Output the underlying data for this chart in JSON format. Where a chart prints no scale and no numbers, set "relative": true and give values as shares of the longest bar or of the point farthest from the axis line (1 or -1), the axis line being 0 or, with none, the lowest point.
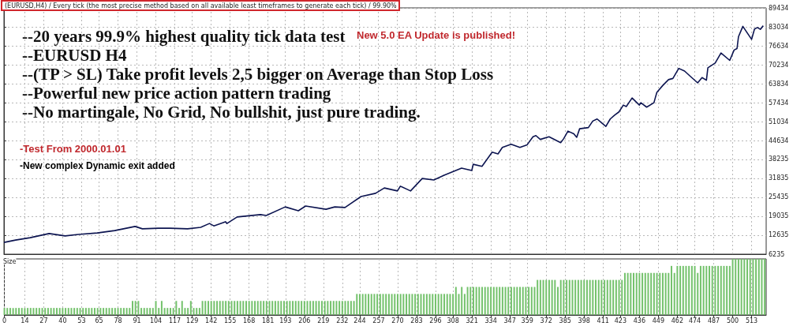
{
  "chart_data": [
    {
      "type": "line",
      "title": "(EURUSD,H4) / Every tick (the most precise method based on all available least timeframes to generate each tick) / 99.90%",
      "annotations": [
        "--20 years 99.9% highest quality tick data test",
        "New 5.0 EA Update is published!",
        "--EURUSD H4",
        "--(TP > SL) Take profit levels 2,5 bigger on Average than Stop Loss",
        "--Powerful new price action pattern trading",
        "--No martingale, No Grid, No bullshit, just pure trading.",
        "-Test From 2000.01.01",
        "-New complex Dynamic exit added"
      ],
      "x": [
        0,
        8,
        18,
        31,
        42,
        51,
        64,
        76,
        90,
        95,
        106,
        114,
        126,
        135,
        141,
        144,
        152,
        153,
        160,
        176,
        180,
        193,
        202,
        207,
        221,
        227,
        234,
        245,
        255,
        261,
        270,
        272,
        279,
        287,
        295,
        302,
        314,
        321,
        322,
        328,
        335,
        339,
        342,
        348,
        354,
        359,
        363,
        365,
        368,
        374,
        382,
        384,
        387,
        391,
        393,
        395,
        401,
        404,
        407,
        413,
        416,
        419,
        422,
        425,
        427,
        431,
        436,
        437,
        441,
        446,
        447,
        448,
        452,
        456,
        459,
        463,
        467,
        471,
        476,
        479,
        482,
        483,
        488,
        492,
        498,
        501,
        503,
        504,
        507,
        510,
        513,
        515,
        517,
        519,
        521
      ],
      "series": [
        {
          "color": "#0c1450",
          "values": [
            10200,
            11000,
            11800,
            13200,
            12400,
            12900,
            13400,
            14200,
            15600,
            14800,
            15000,
            15000,
            14800,
            15300,
            16600,
            15800,
            17200,
            16600,
            18800,
            19600,
            19300,
            22200,
            20900,
            22500,
            21400,
            22200,
            22000,
            25700,
            26800,
            28600,
            27600,
            29200,
            27600,
            31800,
            31300,
            32900,
            35300,
            34500,
            36600,
            35900,
            40700,
            40100,
            42300,
            43400,
            42300,
            43200,
            45900,
            46300,
            45000,
            45900,
            43900,
            45200,
            47800,
            46900,
            45700,
            48600,
            49000,
            51200,
            51900,
            49400,
            51900,
            53200,
            54300,
            56600,
            56100,
            59000,
            56600,
            57400,
            55900,
            57400,
            59200,
            60900,
            63200,
            65200,
            65600,
            69000,
            68100,
            66300,
            64100,
            65900,
            65000,
            69200,
            70800,
            74200,
            71700,
            75200,
            75700,
            79700,
            83200,
            81000,
            78800,
            82300,
            82800,
            82200,
            83400
          ]
        }
      ],
      "xlim": [
        0,
        523
      ],
      "xticks": [
        0,
        14,
        27,
        40,
        53,
        65,
        78,
        91,
        104,
        117,
        129,
        142,
        155,
        168,
        181,
        193,
        206,
        219,
        232,
        244,
        257,
        270,
        283,
        296,
        308,
        321,
        334,
        347,
        359,
        372,
        385,
        398,
        411,
        423,
        436,
        449,
        462,
        474,
        487,
        500,
        513
      ],
      "ylim": [
        6235,
        89434
      ],
      "yticks": [
        6235,
        12635,
        19035,
        25435,
        31835,
        38235,
        44634,
        51034,
        57434,
        63834,
        70234,
        76634,
        83034,
        89434
      ],
      "grid": true,
      "tick_labels": "y"
    },
    {
      "type": "bar",
      "title": "Size",
      "relative": true,
      "color": "#74c26c",
      "grid": "x",
      "tick_labels": "x",
      "xlim": [
        0,
        523
      ],
      "xticks": [
        0,
        14,
        27,
        40,
        53,
        65,
        78,
        91,
        104,
        117,
        129,
        142,
        155,
        168,
        181,
        193,
        206,
        219,
        232,
        244,
        257,
        270,
        283,
        296,
        308,
        321,
        334,
        347,
        359,
        372,
        385,
        398,
        411,
        423,
        436,
        449,
        462,
        474,
        487,
        500,
        513
      ],
      "x": [
        0,
        2,
        4,
        6,
        8,
        10,
        12,
        14,
        16,
        18,
        20,
        22,
        24,
        26,
        28,
        30,
        32,
        34,
        36,
        38,
        40,
        42,
        44,
        46,
        48,
        50,
        52,
        54,
        56,
        58,
        60,
        62,
        64,
        66,
        68,
        70,
        72,
        74,
        76,
        78,
        80,
        82,
        84,
        86,
        88,
        90,
        92,
        94,
        96,
        98,
        100,
        102,
        104,
        106,
        108,
        110,
        112,
        114,
        116,
        118,
        120,
        122,
        124,
        126,
        128,
        130,
        132,
        134,
        136,
        138,
        140,
        142,
        144,
        146,
        148,
        150,
        152,
        154,
        156,
        158,
        160,
        162,
        164,
        166,
        168,
        170,
        172,
        174,
        176,
        178,
        180,
        182,
        184,
        186,
        188,
        190,
        192,
        194,
        196,
        198,
        200,
        202,
        204,
        206,
        208,
        210,
        212,
        214,
        216,
        218,
        220,
        222,
        224,
        226,
        228,
        230,
        232,
        234,
        236,
        238,
        240,
        242,
        244,
        246,
        248,
        250,
        252,
        254,
        256,
        258,
        260,
        262,
        264,
        266,
        268,
        270,
        272,
        274,
        276,
        278,
        280,
        282,
        284,
        286,
        288,
        290,
        292,
        294,
        296,
        298,
        300,
        302,
        304,
        306,
        308,
        310,
        312,
        314,
        316,
        318,
        320,
        322,
        324,
        326,
        328,
        330,
        332,
        334,
        336,
        338,
        340,
        342,
        344,
        346,
        348,
        350,
        352,
        354,
        356,
        358,
        360,
        362,
        364,
        366,
        368,
        370,
        372,
        374,
        376,
        378,
        380,
        382,
        384,
        386,
        388,
        390,
        392,
        394,
        396,
        398,
        400,
        402,
        404,
        406,
        408,
        410,
        412,
        414,
        416,
        418,
        420,
        422,
        424,
        426,
        428,
        430,
        432,
        434,
        436,
        438,
        440,
        442,
        444,
        446,
        448,
        450,
        452,
        454,
        456,
        458,
        460,
        462,
        464,
        466,
        468,
        470,
        472,
        474,
        476,
        478,
        480,
        482,
        484,
        486,
        488,
        490,
        492,
        494,
        496,
        498,
        500,
        502,
        504,
        506,
        508,
        510,
        512,
        514,
        516,
        518,
        520,
        522
      ],
      "values": [
        0.125,
        0.125,
        0.125,
        0.125,
        0.125,
        0.125,
        0.125,
        0.125,
        0.125,
        0.125,
        0.125,
        0.125,
        0.125,
        0.125,
        0.125,
        0.125,
        0.125,
        0.125,
        0.125,
        0.125,
        0.125,
        0.125,
        0.125,
        0.125,
        0.125,
        0.125,
        0.125,
        0.125,
        0.125,
        0.125,
        0.125,
        0.125,
        0.125,
        0.125,
        0.125,
        0.125,
        0.125,
        0.125,
        0.125,
        0.125,
        0.125,
        0.125,
        0.125,
        0.125,
        0.25,
        0.25,
        0.25,
        0.125,
        0.125,
        0.125,
        0.125,
        0.125,
        0.25,
        0.125,
        0.25,
        0.125,
        0.125,
        0.125,
        0.125,
        0.25,
        0.125,
        0.25,
        0.125,
        0.125,
        0.25,
        0.125,
        0.125,
        0.125,
        0.25,
        0.25,
        0.25,
        0.25,
        0.25,
        0.25,
        0.25,
        0.25,
        0.25,
        0.25,
        0.25,
        0.25,
        0.25,
        0.25,
        0.25,
        0.25,
        0.25,
        0.25,
        0.25,
        0.25,
        0.25,
        0.25,
        0.25,
        0.25,
        0.25,
        0.25,
        0.25,
        0.25,
        0.25,
        0.25,
        0.25,
        0.25,
        0.25,
        0.25,
        0.25,
        0.25,
        0.25,
        0.25,
        0.25,
        0.25,
        0.25,
        0.25,
        0.25,
        0.25,
        0.25,
        0.25,
        0.25,
        0.25,
        0.25,
        0.25,
        0.25,
        0.25,
        0.25,
        0.375,
        0.375,
        0.375,
        0.375,
        0.375,
        0.375,
        0.375,
        0.375,
        0.375,
        0.375,
        0.375,
        0.375,
        0.375,
        0.375,
        0.375,
        0.375,
        0.375,
        0.375,
        0.375,
        0.375,
        0.375,
        0.375,
        0.375,
        0.375,
        0.375,
        0.375,
        0.375,
        0.375,
        0.375,
        0.375,
        0.375,
        0.375,
        0.375,
        0.375,
        0.5,
        0.375,
        0.5,
        0.375,
        0.5,
        0.5,
        0.5,
        0.5,
        0.5,
        0.5,
        0.5,
        0.5,
        0.5,
        0.5,
        0.5,
        0.5,
        0.5,
        0.5,
        0.5,
        0.5,
        0.5,
        0.5,
        0.5,
        0.5,
        0.5,
        0.5,
        0.5,
        0.5,
        0.625,
        0.625,
        0.625,
        0.625,
        0.625,
        0.625,
        0.625,
        0.5,
        0.625,
        0.625,
        0.625,
        0.625,
        0.625,
        0.625,
        0.625,
        0.625,
        0.625,
        0.625,
        0.625,
        0.625,
        0.625,
        0.625,
        0.625,
        0.625,
        0.625,
        0.625,
        0.625,
        0.625,
        0.625,
        0.625,
        0.75,
        0.75,
        0.75,
        0.75,
        0.75,
        0.75,
        0.75,
        0.75,
        0.75,
        0.75,
        0.75,
        0.75,
        0.75,
        0.75,
        0.75,
        0.75,
        0.875,
        0.75,
        0.875,
        0.875,
        0.875,
        0.875,
        0.875,
        0.875,
        0.875,
        0.75,
        0.875,
        0.875,
        0.875,
        0.875,
        0.875,
        0.875,
        0.875,
        0.875,
        0.875,
        0.875,
        0.875,
        1,
        1,
        1,
        1,
        1,
        1,
        1,
        1,
        1,
        1,
        1,
        1
      ]
    }
  ]
}
